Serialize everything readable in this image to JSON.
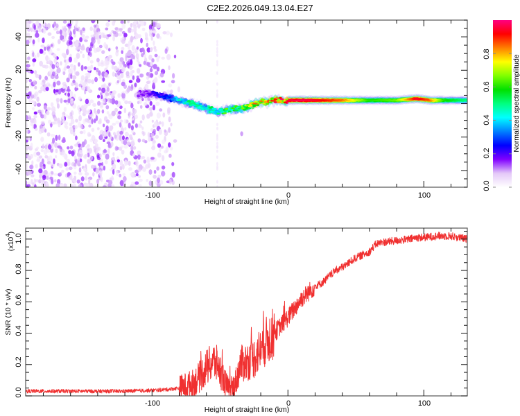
{
  "title": "C2E2.2026.049.13.04.E27",
  "chart_data": [
    {
      "type": "heatmap",
      "name": "spectrogram",
      "xlabel": "Height of straight line (km)",
      "ylabel": "Frequency (Hz)",
      "xlim": [
        -193,
        132
      ],
      "ylim": [
        -50,
        50
      ],
      "x_ticks": [
        -100,
        0,
        100
      ],
      "x_tick_labels": [
        "-100",
        "0",
        "100"
      ],
      "y_ticks": [
        -40,
        -20,
        0,
        20,
        40
      ],
      "y_tick_labels": [
        "-40",
        "-20",
        "0",
        "20",
        "40"
      ],
      "colorbar": {
        "label": "Normalized spectral amplitude",
        "range": [
          0,
          1
        ],
        "ticks": [
          0.0,
          0.2,
          0.4,
          0.6,
          0.8
        ],
        "tick_labels": [
          "0.0",
          "0.2",
          "0.4",
          "0.6",
          "0.8"
        ],
        "colormap": [
          "#ffffff",
          "#e4c8f8",
          "#8000ff",
          "#0000ff",
          "#0080ff",
          "#00ffff",
          "#00ff80",
          "#00e000",
          "#80ff00",
          "#ffff00",
          "#ff8000",
          "#ff0000",
          "#ff0080"
        ]
      },
      "noise_region_x": [
        -193,
        -85
      ],
      "signal_track": {
        "x": [
          -110,
          -100,
          -90,
          -80,
          -70,
          -60,
          -50,
          -45,
          -40,
          -35,
          -30,
          -25,
          -20,
          -15,
          -10,
          -5,
          0,
          10,
          20,
          40,
          60,
          80,
          95,
          105,
          115,
          132
        ],
        "freq": [
          6,
          6,
          4,
          2,
          0,
          -3,
          -5,
          -4,
          -3,
          -3,
          -2,
          0,
          1,
          1,
          2,
          2,
          2,
          2,
          2,
          2,
          2,
          2,
          3,
          2,
          2,
          2
        ],
        "amplitude": [
          0.15,
          0.2,
          0.3,
          0.45,
          0.5,
          0.5,
          0.55,
          0.6,
          0.6,
          0.65,
          0.7,
          0.8,
          0.85,
          0.9,
          0.9,
          0.92,
          0.95,
          0.97,
          0.95,
          0.85,
          0.6,
          0.65,
          0.95,
          0.85,
          0.6,
          0.5
        ]
      }
    },
    {
      "type": "line",
      "name": "snr",
      "xlabel": "Height of straight line (km)",
      "ylabel": "SNR (10 * v/v)",
      "y_multiplier_label": "(x10",
      "y_multiplier_exp": "4",
      "y_multiplier_close": ")",
      "xlim": [
        -193,
        132
      ],
      "ylim": [
        0,
        1.07
      ],
      "x_ticks": [
        -100,
        0,
        100
      ],
      "x_tick_labels": [
        "-100",
        "0",
        "100"
      ],
      "y_ticks": [
        0.0,
        0.2,
        0.4,
        0.6,
        0.8,
        1.0
      ],
      "y_tick_labels": [
        "0.0",
        "0.2",
        "0.4",
        "0.6",
        "0.8",
        "1.0"
      ],
      "series": [
        {
          "name": "SNR",
          "color": "#f03030",
          "x": [
            -193,
            -180,
            -160,
            -140,
            -120,
            -100,
            -90,
            -80,
            -70,
            -65,
            -60,
            -55,
            -52,
            -48,
            -45,
            -42,
            -38,
            -35,
            -30,
            -25,
            -20,
            -15,
            -10,
            -5,
            0,
            5,
            10,
            15,
            20,
            25,
            30,
            35,
            40,
            45,
            50,
            55,
            60,
            65,
            70,
            80,
            90,
            95,
            100,
            110,
            120,
            125,
            132
          ],
          "y": [
            0.03,
            0.03,
            0.03,
            0.03,
            0.03,
            0.035,
            0.04,
            0.05,
            0.08,
            0.12,
            0.18,
            0.22,
            0.2,
            0.12,
            0.06,
            0.02,
            0.1,
            0.2,
            0.22,
            0.24,
            0.3,
            0.36,
            0.4,
            0.45,
            0.5,
            0.56,
            0.62,
            0.66,
            0.7,
            0.72,
            0.76,
            0.8,
            0.82,
            0.85,
            0.88,
            0.9,
            0.92,
            0.97,
            0.98,
            0.99,
            1.0,
            1.01,
            1.01,
            1.02,
            1.02,
            1.01,
            1.0
          ]
        }
      ]
    }
  ]
}
